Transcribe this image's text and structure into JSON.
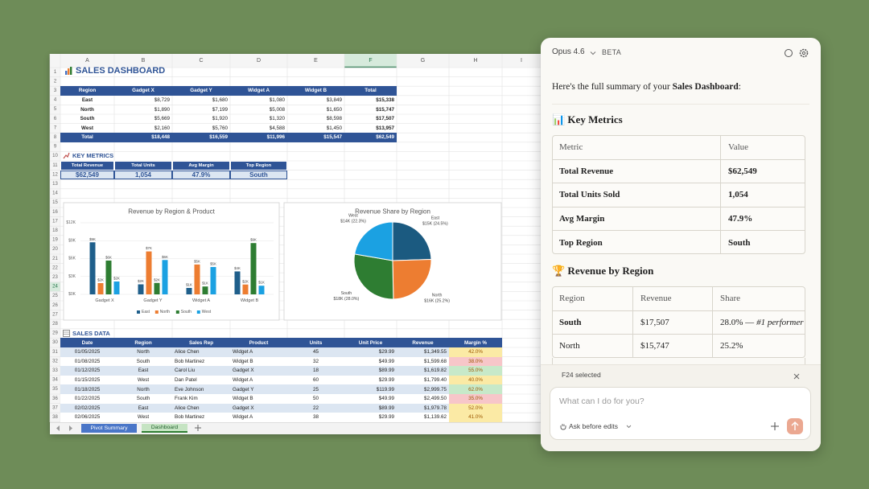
{
  "sheet": {
    "columns": [
      "A",
      "B",
      "C",
      "D",
      "E",
      "F",
      "G",
      "H",
      "I"
    ],
    "rows": [
      1,
      2,
      3,
      4,
      5,
      6,
      7,
      8,
      9,
      10,
      11,
      12,
      13,
      14,
      15,
      16,
      17,
      18,
      19,
      20,
      21,
      22,
      23,
      24,
      25,
      26,
      27,
      28,
      29,
      30,
      31,
      32,
      33,
      34,
      35,
      36,
      37,
      38
    ],
    "title": "SALES DASHBOARD",
    "summary_table": {
      "header": [
        "Region",
        "Gadget X",
        "Gadget Y",
        "Widget A",
        "Widget B",
        "Total"
      ],
      "rows": [
        [
          "East",
          "$8,729",
          "$1,680",
          "$1,080",
          "$3,849",
          "$15,338"
        ],
        [
          "North",
          "$1,890",
          "$7,199",
          "$5,008",
          "$1,650",
          "$15,747"
        ],
        [
          "South",
          "$5,669",
          "$1,920",
          "$1,320",
          "$8,598",
          "$17,507"
        ],
        [
          "West",
          "$2,160",
          "$5,760",
          "$4,588",
          "$1,450",
          "$13,957"
        ]
      ],
      "total": [
        "Total",
        "$18,448",
        "$16,559",
        "$11,996",
        "$15,547",
        "$62,549"
      ]
    },
    "key_metrics_title": "KEY METRICS",
    "key_metrics": {
      "header": [
        "Total Revenue",
        "Total Units",
        "Avg Margin",
        "Top Region"
      ],
      "values": [
        "$62,549",
        "1,054",
        "47.9%",
        "South"
      ]
    },
    "sales_data_title": "SALES DATA",
    "sales_data": {
      "header": [
        "Date",
        "Region",
        "Sales Rep",
        "Product",
        "Units",
        "Unit Price",
        "Revenue",
        "Margin %"
      ],
      "rows": [
        [
          "01/05/2025",
          "North",
          "Alice Chen",
          "Widget A",
          "45",
          "$29.99",
          "$1,349.55",
          "42.0%"
        ],
        [
          "01/08/2025",
          "South",
          "Bob Martinez",
          "Widget B",
          "32",
          "$49.99",
          "$1,599.68",
          "38.0%"
        ],
        [
          "01/12/2025",
          "East",
          "Carol Liu",
          "Gadget X",
          "18",
          "$89.99",
          "$1,619.82",
          "55.0%"
        ],
        [
          "01/15/2025",
          "West",
          "Dan Patel",
          "Widget A",
          "60",
          "$29.99",
          "$1,799.40",
          "40.0%"
        ],
        [
          "01/18/2025",
          "North",
          "Eve Johnson",
          "Gadget Y",
          "25",
          "$119.99",
          "$2,999.75",
          "62.0%"
        ],
        [
          "01/22/2025",
          "South",
          "Frank Kim",
          "Widget B",
          "50",
          "$49.99",
          "$2,499.50",
          "35.0%"
        ],
        [
          "02/02/2025",
          "East",
          "Alice Chen",
          "Gadget X",
          "22",
          "$89.99",
          "$1,979.78",
          "52.0%"
        ],
        [
          "02/06/2025",
          "West",
          "Bob Martinez",
          "Widget A",
          "38",
          "$29.99",
          "$1,139.62",
          "41.0%"
        ]
      ]
    },
    "tabs": [
      "Pivot Summary",
      "Dashboard"
    ]
  },
  "chart_data": [
    {
      "type": "bar",
      "title": "Revenue by Region & Product",
      "categories": [
        "Gadget X",
        "Gadget Y",
        "Widget A",
        "Widget B"
      ],
      "series": [
        {
          "name": "East",
          "color": "#1f5f8b",
          "values": [
            8729,
            1680,
            1080,
            3849
          ],
          "value_labels": [
            "$9K",
            "$2K",
            "$1K",
            "$4K"
          ]
        },
        {
          "name": "North",
          "color": "#ed7d31",
          "values": [
            1890,
            7199,
            5008,
            1650
          ],
          "value_labels": [
            "$2K",
            "$7K",
            "$5K",
            "$2K"
          ]
        },
        {
          "name": "South",
          "color": "#2e7d32",
          "values": [
            5669,
            1920,
            1320,
            8598
          ],
          "value_labels": [
            "$6K",
            "$2K",
            "$1K",
            "$9K"
          ]
        },
        {
          "name": "West",
          "color": "#1ba1e2",
          "values": [
            2160,
            5760,
            4588,
            1450
          ],
          "value_labels": [
            "$2K",
            "$6K",
            "$5K",
            "$1K"
          ]
        }
      ],
      "ylim": [
        0,
        12000
      ],
      "yticks": [
        {
          "value": 0,
          "label": "$0K"
        },
        {
          "value": 3000,
          "label": "$3K"
        },
        {
          "value": 6000,
          "label": "$6K"
        },
        {
          "value": 9000,
          "label": "$9K"
        },
        {
          "value": 12000,
          "label": "$12K"
        }
      ],
      "grid": true,
      "legend": "bottom"
    },
    {
      "type": "pie",
      "title": "Revenue Share by Region",
      "categories": [
        "East",
        "North",
        "South",
        "West"
      ],
      "values": [
        24.5,
        25.2,
        28.0,
        22.3
      ],
      "value_labels": [
        "$15K (24.5%)",
        "$16K (25.2%)",
        "$18K (28.0%)",
        "$14K (22.3%)"
      ],
      "colors": [
        "#1b5a80",
        "#ed7d31",
        "#2e7d32",
        "#1ba1e2"
      ]
    }
  ],
  "assistant": {
    "model": "Opus 4.6",
    "badge": "BETA",
    "intro": [
      "Here's the full summary of your ",
      "Sales Dashboard",
      ":"
    ],
    "sections": [
      {
        "heading": "📊 Key Metrics",
        "table": {
          "header": [
            "Metric",
            "Value"
          ],
          "rows": [
            [
              "Total Revenue",
              "$62,549"
            ],
            [
              "Total Units Sold",
              "1,054"
            ],
            [
              "Avg Margin",
              "47.9%"
            ],
            [
              "Top Region",
              "South"
            ]
          ]
        }
      },
      {
        "heading": "🏆 Revenue by Region",
        "table": {
          "header": [
            "Region",
            "Revenue",
            "Share"
          ],
          "rows": [
            [
              "South",
              "$17,507",
              [
                "28.0% — ",
                "#1 performer"
              ]
            ],
            [
              "North",
              "$15,747",
              "25.2%"
            ]
          ]
        }
      }
    ],
    "selection": "F24 selected",
    "placeholder": "What can I do for you?",
    "mode": "Ask before edits"
  }
}
